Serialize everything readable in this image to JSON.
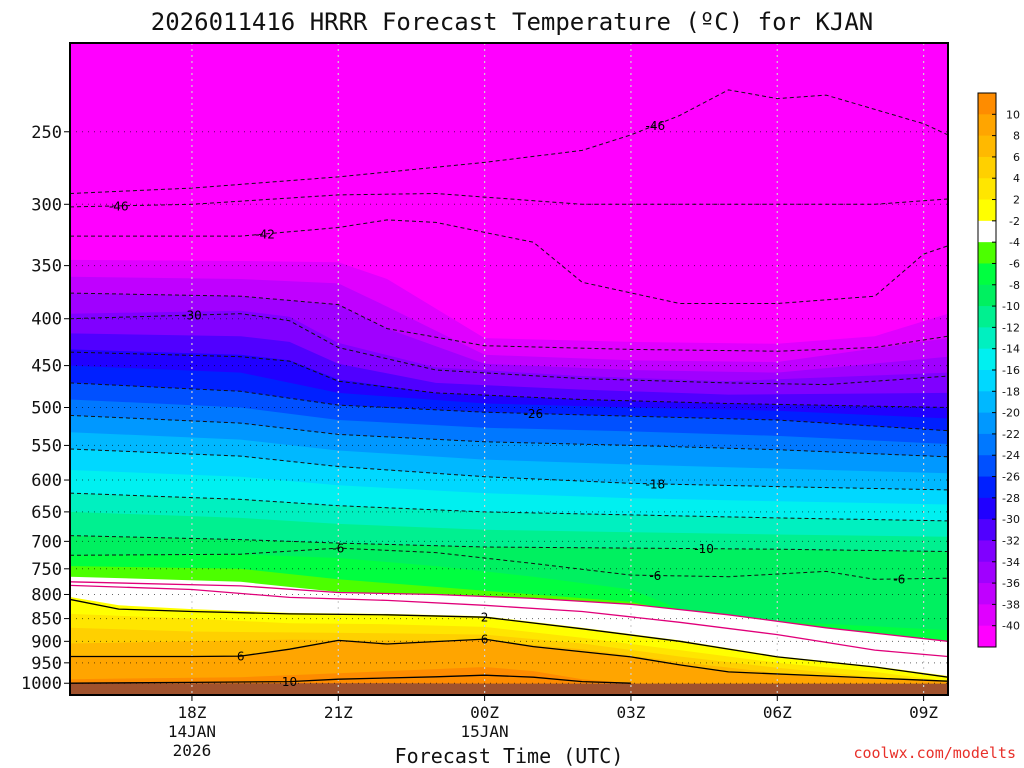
{
  "chart_data": {
    "type": "heatmap",
    "title": "2026011416 HRRR Forecast Temperature (ºC) for KJAN",
    "xlabel": "Forecast Time (UTC)",
    "ylabel": "",
    "credit": "coolwx.com/modelts",
    "x_range_hours_from_18Z": [
      -2.5,
      15.5
    ],
    "y_levels_hpa": [
      250,
      300,
      350,
      400,
      450,
      500,
      550,
      600,
      650,
      700,
      750,
      800,
      850,
      900,
      950,
      1000
    ],
    "y_range_hpa": [
      200,
      1030
    ],
    "x_ticks": [
      {
        "h": 0,
        "lines": [
          "18Z",
          "14JAN",
          "2026"
        ]
      },
      {
        "h": 3,
        "lines": [
          "21Z"
        ]
      },
      {
        "h": 6,
        "lines": [
          "00Z",
          "15JAN"
        ]
      },
      {
        "h": 9,
        "lines": [
          "03Z"
        ]
      },
      {
        "h": 12,
        "lines": [
          "06Z"
        ]
      },
      {
        "h": 15,
        "lines": [
          "09Z"
        ]
      }
    ],
    "colorbar": {
      "labels": [
        "10",
        "8",
        "6",
        "4",
        "2",
        "-2",
        "-4",
        "-6",
        "-8",
        "-10",
        "-12",
        "-14",
        "-16",
        "-18",
        "-20",
        "-22",
        "-24",
        "-26",
        "-28",
        "-30",
        "-32",
        "-34",
        "-36",
        "-38",
        "-40"
      ],
      "colors": [
        "#fe8c00",
        "#ffa500",
        "#ffb900",
        "#ffd000",
        "#ffe600",
        "#ffff00",
        "#ffffff",
        "#4cff00",
        "#00ff40",
        "#00f060",
        "#00f090",
        "#00f0c0",
        "#00f0f0",
        "#00d8ff",
        "#00b8ff",
        "#0098ff",
        "#0078ff",
        "#0050ff",
        "#0020ff",
        "#2000ff",
        "#5000ff",
        "#8000ff",
        "#a000ff",
        "#c000ff",
        "#e000ff",
        "#ff00ff"
      ]
    },
    "isotherms": [
      {
        "t": -46,
        "style": "dashed",
        "pts": [
          [
            -2.5,
            292
          ],
          [
            0,
            288
          ],
          [
            3,
            280
          ],
          [
            6,
            270
          ],
          [
            8,
            262
          ],
          [
            9,
            252
          ],
          [
            10,
            240
          ],
          [
            11,
            225
          ],
          [
            12,
            230
          ],
          [
            13,
            228
          ],
          [
            15,
            245
          ],
          [
            15.5,
            252
          ]
        ],
        "label": {
          "text": "-46",
          "h": 9.5
        }
      },
      {
        "t": -46,
        "style": "dashed",
        "pts": [
          [
            -2.5,
            302
          ],
          [
            0,
            300
          ],
          [
            3,
            293
          ],
          [
            5,
            292
          ],
          [
            8,
            300
          ],
          [
            11,
            300
          ],
          [
            14,
            300
          ],
          [
            15.5,
            296
          ]
        ],
        "label": {
          "text": "-46",
          "h": -1.5
        }
      },
      {
        "t": -42,
        "style": "dashed",
        "pts": [
          [
            -2.5,
            325
          ],
          [
            1,
            325
          ],
          [
            3,
            318
          ],
          [
            4,
            312
          ],
          [
            5,
            314
          ],
          [
            6,
            322
          ],
          [
            7,
            330
          ],
          [
            8,
            365
          ],
          [
            10,
            385
          ],
          [
            12,
            385
          ],
          [
            14,
            378
          ],
          [
            15,
            340
          ],
          [
            15.5,
            333
          ]
        ],
        "label": {
          "text": "-42",
          "h": 1.5
        }
      },
      {
        "t": -38,
        "style": "dashed",
        "pts": [
          [
            -2.5,
            375
          ],
          [
            1,
            378
          ],
          [
            3,
            386
          ],
          [
            4,
            410
          ],
          [
            6,
            428
          ],
          [
            9,
            432
          ],
          [
            12,
            434
          ],
          [
            14,
            430
          ],
          [
            15.5,
            418
          ]
        ]
      },
      {
        "t": -30,
        "style": "dashed",
        "pts": [
          [
            -2.5,
            400
          ],
          [
            1,
            395
          ],
          [
            2,
            402
          ],
          [
            3,
            430
          ],
          [
            5,
            455
          ],
          [
            8,
            465
          ],
          [
            11,
            470
          ],
          [
            13,
            472
          ],
          [
            15.5,
            462
          ]
        ],
        "label": {
          "text": "-30",
          "h": 0
        }
      },
      {
        "t": -30,
        "style": "dashed",
        "pts": [
          [
            -2.5,
            435
          ],
          [
            1,
            440
          ],
          [
            2,
            445
          ],
          [
            3,
            468
          ],
          [
            5,
            482
          ],
          [
            8,
            490
          ],
          [
            11,
            495
          ],
          [
            15.5,
            500
          ]
        ]
      },
      {
        "t": -26,
        "style": "dashed",
        "pts": [
          [
            -2.5,
            470
          ],
          [
            1,
            480
          ],
          [
            3,
            497
          ],
          [
            6,
            506
          ],
          [
            9,
            511
          ],
          [
            12,
            516
          ],
          [
            15.5,
            530
          ]
        ],
        "label": {
          "text": "-26",
          "h": 7
        }
      },
      {
        "t": -22,
        "style": "dashed",
        "pts": [
          [
            -2.5,
            510
          ],
          [
            1,
            520
          ],
          [
            3,
            535
          ],
          [
            6,
            545
          ],
          [
            9,
            550
          ],
          [
            12,
            556
          ],
          [
            15.5,
            566
          ]
        ]
      },
      {
        "t": -18,
        "style": "dashed",
        "pts": [
          [
            -2.5,
            555
          ],
          [
            1,
            565
          ],
          [
            3,
            580
          ],
          [
            6,
            595
          ],
          [
            9,
            605
          ],
          [
            12,
            610
          ],
          [
            15.5,
            615
          ]
        ],
        "label": {
          "text": "-18",
          "h": 9.5
        }
      },
      {
        "t": -14,
        "style": "dashed",
        "pts": [
          [
            -2.5,
            620
          ],
          [
            1,
            630
          ],
          [
            3,
            640
          ],
          [
            6,
            650
          ],
          [
            9,
            655
          ],
          [
            12,
            660
          ],
          [
            15.5,
            665
          ]
        ]
      },
      {
        "t": -10,
        "style": "dashed",
        "pts": [
          [
            -2.5,
            690
          ],
          [
            1,
            697
          ],
          [
            3,
            703
          ],
          [
            6,
            710
          ],
          [
            9,
            712
          ],
          [
            12,
            714
          ],
          [
            15.5,
            718
          ]
        ],
        "label": {
          "text": "-10",
          "h": 10.5
        }
      },
      {
        "t": -6,
        "style": "dashed",
        "pts": [
          [
            -2.5,
            725
          ],
          [
            1,
            723
          ],
          [
            3,
            712
          ],
          [
            5,
            720
          ],
          [
            7,
            740
          ],
          [
            9,
            762
          ],
          [
            11,
            765
          ],
          [
            13,
            755
          ],
          [
            14,
            770
          ],
          [
            15.5,
            768
          ]
        ],
        "label": {
          "text": "-6",
          "h": 3
        }
      },
      {
        "t": -6,
        "label": {
          "text": "-6",
          "h": 9.5
        },
        "style": "none",
        "pts": []
      },
      {
        "t": -6,
        "label": {
          "text": "-6",
          "h": 14.5
        },
        "style": "none",
        "pts": []
      },
      {
        "t": 0,
        "style": "magenta",
        "pts": [
          [
            -2.5,
            782
          ],
          [
            0,
            790
          ],
          [
            2,
            806
          ],
          [
            4,
            812
          ],
          [
            6,
            822
          ],
          [
            8,
            835
          ],
          [
            10,
            858
          ],
          [
            12,
            885
          ],
          [
            14,
            920
          ],
          [
            15.5,
            935
          ]
        ]
      },
      {
        "t": 0,
        "style": "magenta",
        "pts": [
          [
            -2.5,
            775
          ],
          [
            1,
            783
          ],
          [
            3,
            796
          ],
          [
            5,
            800
          ],
          [
            7,
            808
          ],
          [
            9,
            820
          ],
          [
            11,
            842
          ],
          [
            13,
            870
          ],
          [
            15.5,
            900
          ]
        ]
      },
      {
        "t": 2,
        "style": "solid",
        "pts": [
          [
            -2.5,
            810
          ],
          [
            -1.5,
            830
          ],
          [
            0,
            835
          ],
          [
            2,
            840
          ],
          [
            4,
            842
          ],
          [
            6,
            847
          ],
          [
            8,
            872
          ],
          [
            10,
            900
          ],
          [
            12,
            936
          ],
          [
            14,
            960
          ],
          [
            15.5,
            985
          ]
        ],
        "label": {
          "text": "2",
          "h": 6
        }
      },
      {
        "t": 6,
        "style": "solid",
        "pts": [
          [
            -2.5,
            935
          ],
          [
            0,
            935
          ],
          [
            1,
            934
          ],
          [
            2,
            918
          ],
          [
            3,
            898
          ],
          [
            4,
            906
          ],
          [
            6,
            895
          ],
          [
            7,
            912
          ],
          [
            9,
            936
          ],
          [
            10,
            955
          ],
          [
            11,
            972
          ],
          [
            13,
            982
          ],
          [
            15.5,
            995
          ]
        ],
        "label": {
          "text": "6",
          "h": 6
        }
      },
      {
        "t": 6,
        "style": "none",
        "pts": [],
        "label": {
          "text": "6",
          "h": 1
        }
      },
      {
        "t": 10,
        "style": "solid",
        "pts": [
          [
            -2.5,
            1000
          ],
          [
            0,
            998
          ],
          [
            2,
            996
          ],
          [
            3,
            990
          ],
          [
            5,
            984
          ],
          [
            6,
            980
          ],
          [
            7,
            985
          ],
          [
            8,
            996
          ],
          [
            9,
            1000
          ]
        ],
        "label": {
          "text": "10",
          "h": 2
        }
      }
    ]
  }
}
